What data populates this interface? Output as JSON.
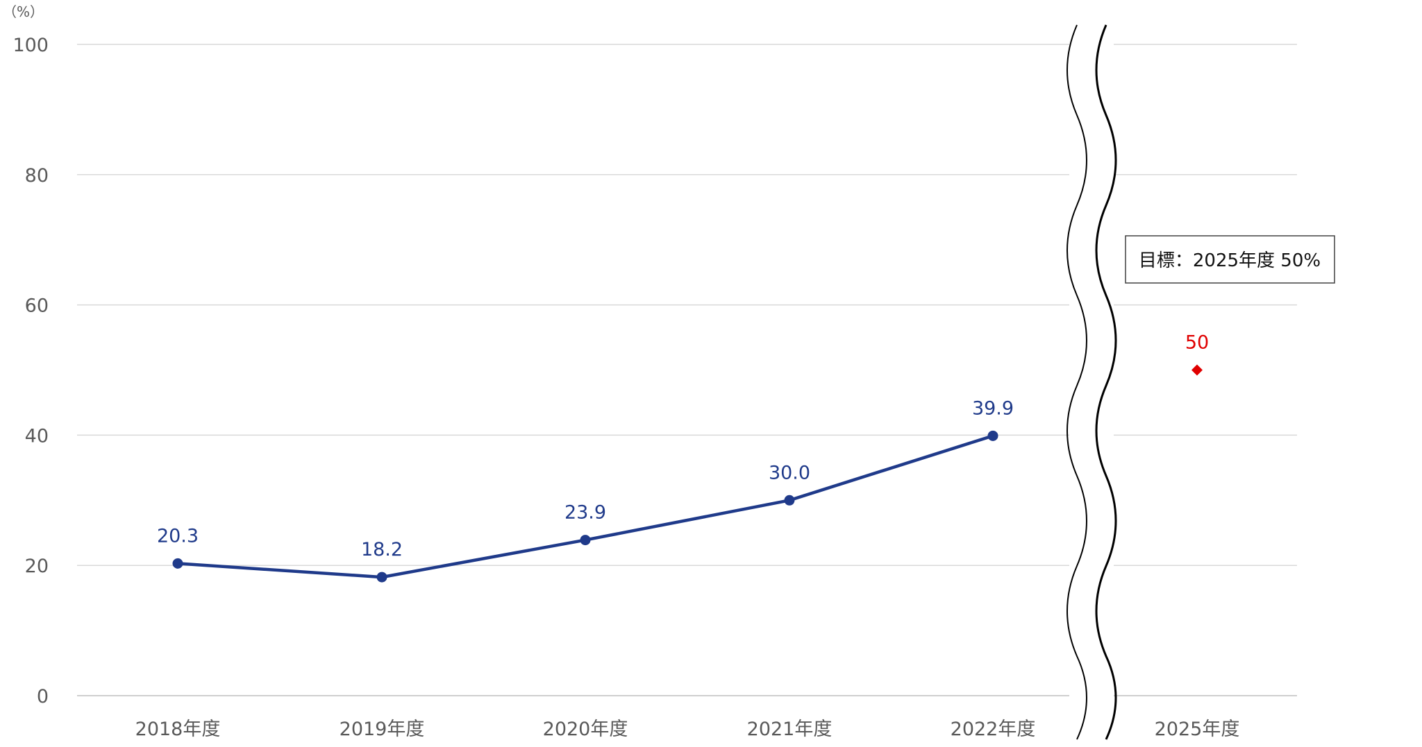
{
  "chart_data": {
    "type": "line",
    "unit_label": "（%）",
    "categories": [
      "2018年度",
      "2019年度",
      "2020年度",
      "2021年度",
      "2022年度",
      "2025年度"
    ],
    "series": [
      {
        "values": [
          20.3,
          18.2,
          23.9,
          30.0,
          39.9,
          null
        ],
        "labels": [
          "20.3",
          "18.2",
          "23.9",
          "30.0",
          "39.9",
          ""
        ],
        "color": "#1F3A8A",
        "marker": "circle"
      },
      {
        "values": [
          null,
          null,
          null,
          null,
          null,
          50
        ],
        "labels": [
          "",
          "",
          "",
          "",
          "",
          "50"
        ],
        "color": "#E00000",
        "marker": "diamond"
      }
    ],
    "yticks": [
      "0",
      "20",
      "40",
      "60",
      "80",
      "100"
    ],
    "ylim": [
      0,
      100
    ],
    "grid": true,
    "axis_break": "between 2022年度 and 2025年度",
    "annotation": "目標：2025年度 50%"
  }
}
